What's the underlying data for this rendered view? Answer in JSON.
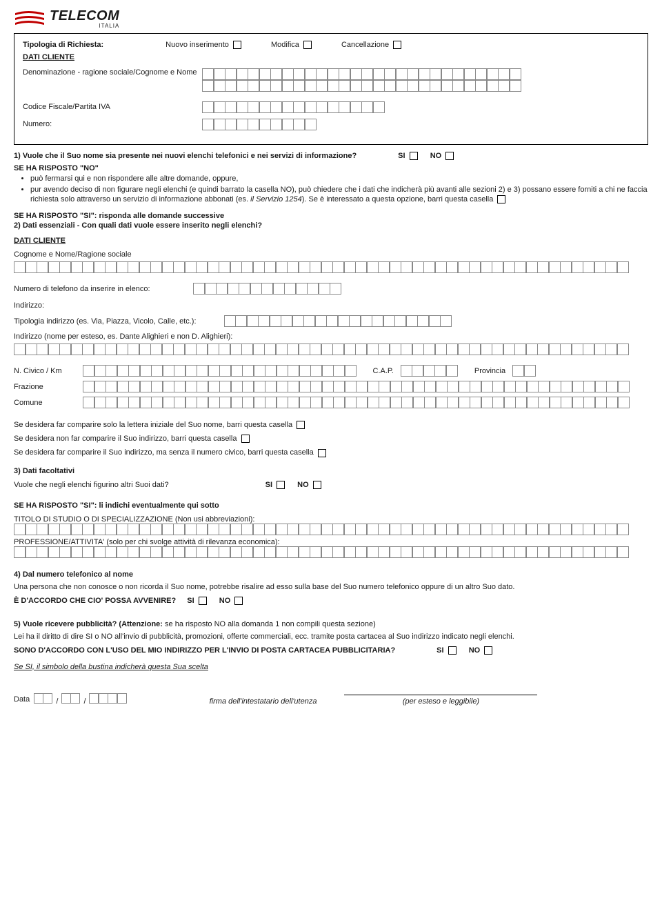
{
  "brand": {
    "name": "TELECOM",
    "sub": "ITALIA",
    "logo_color": "#c00000"
  },
  "header": {
    "tipologia_lbl": "Tipologia di Richiesta:",
    "nuovo": "Nuovo  inserimento",
    "modifica": "Modifica",
    "cancellazione": "Cancellazione",
    "dati_cliente": "DATI CLIENTE",
    "denom": "Denominazione - ragione sociale/Cognome e Nome",
    "cf": "Codice Fiscale/Partita IVA",
    "numero": "Numero:"
  },
  "q1": {
    "text": "1)  Vuole che il Suo nome sia presente nei nuovi elenchi telefonici e nei servizi di informazione?",
    "si": "SI",
    "no": "NO",
    "no_head": "SE HA RISPOSTO \"NO\"",
    "b1": "può fermarsi qui e non rispondere alle altre domande, oppure,",
    "b2a": "pur avendo deciso di non figurare negli elenchi (e quindi barrato la casella NO), può chiedere che i dati che indicherà più avanti alle sezioni 2) e 3) possano essere forniti a chi ne faccia richiesta solo attraverso un servizio di informazione  abbonati (es. ",
    "b2i": "il Servizio 1254",
    "b2b": "). Se è interessato a questa opzione, barri questa casella",
    "si_head": "SE HA RISPOSTO \"SI\": risponda alle domande successive"
  },
  "q2": {
    "title": "2)  Dati essenziali - Con quali dati vuole essere inserito negli elenchi?",
    "dati_cliente": "DATI CLIENTE",
    "cognome": "Cognome e Nome/Ragione sociale",
    "num_tel": "Numero di telefono da inserire in elenco:",
    "indirizzo_lbl": "Indirizzo:",
    "tip_ind": "Tipologia indirizzo (es. Via, Piazza, Vicolo, Calle, etc.):",
    "ind_nome": "Indirizzo (nome per esteso, es. Dante Alighieri e non D. Alighieri):",
    "civico": "N. Civico / Km",
    "cap": "C.A.P.",
    "prov": "Provincia",
    "frazione": "Frazione",
    "comune": "Comune",
    "opt1": "Se desidera far comparire solo la lettera iniziale del Suo nome, barri questa casella",
    "opt2": "Se desidera non far comparire il Suo indirizzo, barri questa casella",
    "opt3": "Se desidera far comparire il Suo indirizzo, ma senza il numero civico, barri questa casella"
  },
  "q3": {
    "title": "3)  Dati facoltativi",
    "q": "Vuole che negli elenchi figurino altri Suoi dati?",
    "si": "SI",
    "no": "NO",
    "si_head": "SE HA RISPOSTO \"SI\": li indichi eventualmente qui sotto",
    "titolo": "TITOLO DI STUDIO O DI SPECIALIZZAZIONE (Non usi abbreviazioni):",
    "prof": "PROFESSIONE/ATTIVITA' (solo per chi svolge attività di rilevanza economica):"
  },
  "q4": {
    "title": "4)  Dal numero telefonico al  nome",
    "text": "Una persona che non conosce o non ricorda il Suo nome,  potrebbe risalire ad esso sulla base del Suo numero  telefonico oppure di un altro Suo dato.",
    "q": "È D'ACCORDO CHE CIO' POSSA AVVENIRE?",
    "si": "SI",
    "no": "NO"
  },
  "q5": {
    "title_a": "5)  Vuole ricevere pubblicità? (Attenzione: ",
    "title_b": "se ha risposto NO alla domanda 1 non compili questa sezione)",
    "text": "Lei ha il diritto di dire SI o NO all'invio di pubblicità, promozioni, offerte commerciali, ecc. tramite posta cartacea al Suo indirizzo indicato negli elenchi.",
    "q": "SONO D'ACCORDO CON L'USO DEL MIO INDIRIZZO PER L'INVIO DI POSTA CARTACEA PUBBLICITARIA?",
    "si": "SI",
    "no": "NO",
    "note": "Se SI, il simbolo della bustina indicherà questa  Sua scelta"
  },
  "footer": {
    "data": "Data",
    "firma": "firma dell'intestatario dell'utenza",
    "esteso": "(per esteso e leggibile)"
  },
  "grids": {
    "denom_row": 28,
    "cf": 16,
    "numero": 10,
    "cognome": 54,
    "tel": 13,
    "tip_ind": 20,
    "ind_full": 54,
    "civico": 24,
    "cap": 5,
    "prov": 2,
    "frazione": 48,
    "comune": 48,
    "titolo": 54,
    "prof": 54
  }
}
